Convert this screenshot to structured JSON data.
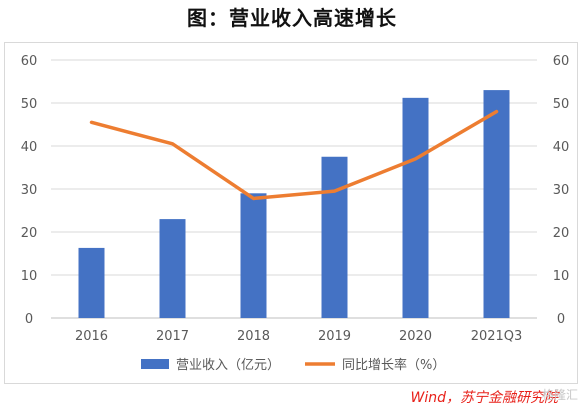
{
  "title": "图：营业收入高速增长",
  "source": "Wind，苏宁金融研究院",
  "watermark": "格隆汇",
  "chart_data": {
    "type": "bar",
    "title": "图：营业收入高速增长",
    "categories": [
      "2016",
      "2017",
      "2018",
      "2019",
      "2020",
      "2021Q3"
    ],
    "series": [
      {
        "name": "营业收入（亿元）",
        "type": "bar",
        "axis": "left",
        "color": "#4472c4",
        "values": [
          16.3,
          23.0,
          29.0,
          37.5,
          51.2,
          53.0
        ]
      },
      {
        "name": "同比增长率（%）",
        "type": "line",
        "axis": "right",
        "color": "#ed7d31",
        "values": [
          45.5,
          40.5,
          27.8,
          29.5,
          37.0,
          48.0
        ]
      }
    ],
    "ylim": [
      0,
      60
    ],
    "y2lim": [
      0,
      60
    ],
    "yticks": [
      "0",
      "10",
      "20",
      "30",
      "40",
      "50",
      "60"
    ],
    "y2ticks": [
      "0",
      "10",
      "20",
      "30",
      "40",
      "50",
      "60"
    ],
    "grid": true,
    "legend": "bottom"
  }
}
